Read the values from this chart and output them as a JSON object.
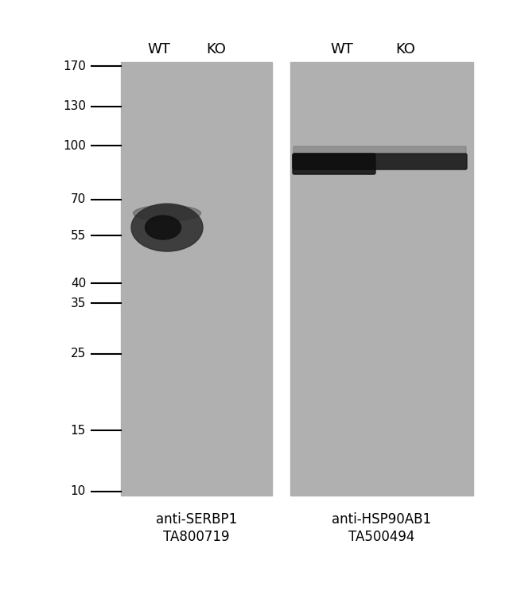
{
  "bg_color": "#ffffff",
  "gel_bg_color": "#b0b0b0",
  "ladder_marks": [
    170,
    130,
    100,
    70,
    55,
    40,
    35,
    25,
    15,
    10
  ],
  "panel1_label_line1": "anti-SERBP1",
  "panel1_label_line2": "TA800719",
  "panel2_label_line1": "anti-HSP90AB1",
  "panel2_label_line2": "TA500494",
  "col_labels": [
    "WT",
    "KO"
  ],
  "title_fontsize": 13,
  "label_fontsize": 12,
  "ladder_fontsize": 11,
  "col_label_fontsize": 13
}
